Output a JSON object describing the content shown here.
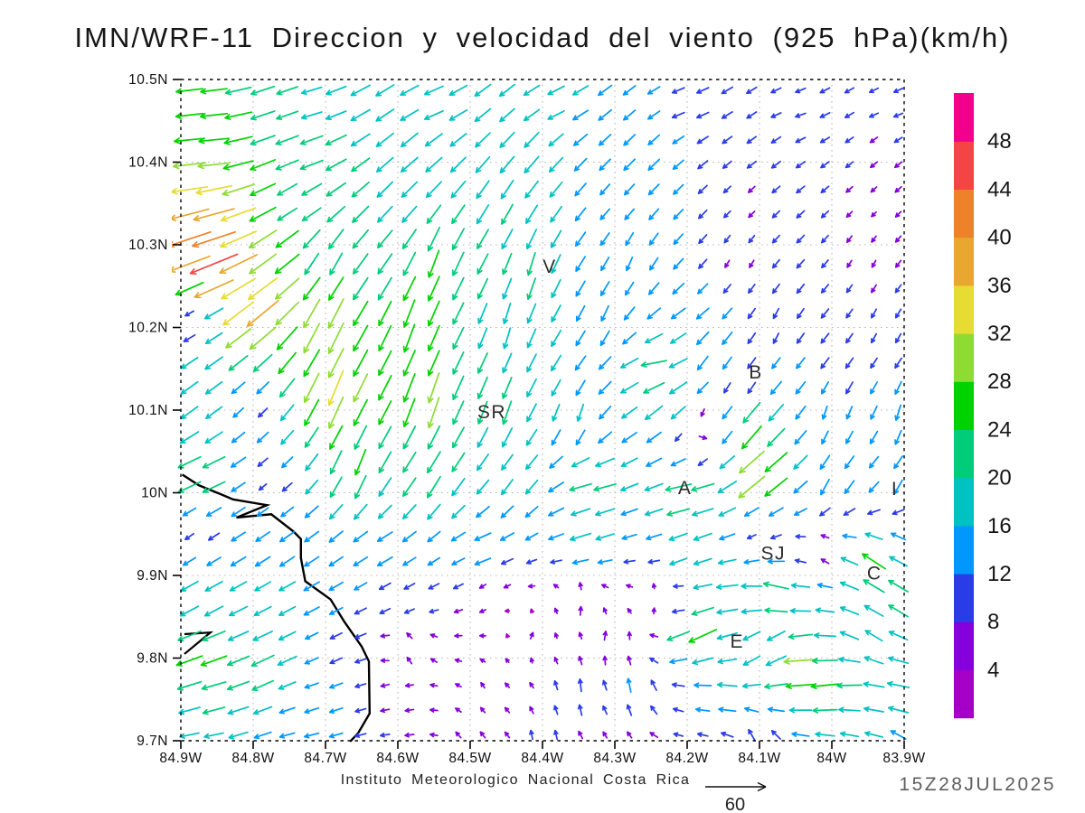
{
  "title": {
    "text": "IMN/WRF-11 Direccion y velocidad del viento (925 hPa)(km/h)"
  },
  "footer": {
    "institute": "Instituto Meteorologico Nacional Costa Rica",
    "timestamp": "15Z28JUL2025"
  },
  "axes": {
    "x_ticks": [
      {
        "label": "84.9W",
        "lonW": 84.9
      },
      {
        "label": "84.8W",
        "lonW": 84.8
      },
      {
        "label": "84.7W",
        "lonW": 84.7
      },
      {
        "label": "84.6W",
        "lonW": 84.6
      },
      {
        "label": "84.5W",
        "lonW": 84.5
      },
      {
        "label": "84.4W",
        "lonW": 84.4
      },
      {
        "label": "84.3W",
        "lonW": 84.3
      },
      {
        "label": "84.2W",
        "lonW": 84.2
      },
      {
        "label": "84.1W",
        "lonW": 84.1
      },
      {
        "label": "84W",
        "lonW": 84.0
      },
      {
        "label": "83.9W",
        "lonW": 83.9
      }
    ],
    "y_ticks": [
      {
        "label": "10.5N",
        "lat": 10.5
      },
      {
        "label": "10.4N",
        "lat": 10.4
      },
      {
        "label": "10.3N",
        "lat": 10.3
      },
      {
        "label": "10.2N",
        "lat": 10.2
      },
      {
        "label": "10.1N",
        "lat": 10.1
      },
      {
        "label": "10N",
        "lat": 10.0
      },
      {
        "label": "9.9N",
        "lat": 9.9
      },
      {
        "label": "9.8N",
        "lat": 9.8
      },
      {
        "label": "9.7N",
        "lat": 9.7
      }
    ]
  },
  "colorbar": {
    "levels": [
      4,
      8,
      12,
      16,
      20,
      24,
      28,
      32,
      36,
      40,
      44,
      48
    ],
    "colors": [
      "#a400c8",
      "#8400dc",
      "#2a3ce8",
      "#0098ff",
      "#00c2c2",
      "#00cc7a",
      "#00d200",
      "#8edc32",
      "#e6dc32",
      "#e8a830",
      "#ee8228",
      "#f44444",
      "#f0008c"
    ]
  },
  "stations": [
    {
      "label": "V",
      "lonW": 84.39,
      "lat": 10.274
    },
    {
      "label": "B",
      "lonW": 84.105,
      "lat": 10.146
    },
    {
      "label": "SR",
      "lonW": 84.47,
      "lat": 10.098
    },
    {
      "label": "A",
      "lonW": 84.203,
      "lat": 10.006
    },
    {
      "label": "SJ",
      "lonW": 84.081,
      "lat": 9.927
    },
    {
      "label": "C",
      "lonW": 83.941,
      "lat": 9.903
    },
    {
      "label": "E",
      "lonW": 84.131,
      "lat": 9.82
    },
    {
      "label": "I",
      "lonW": 83.913,
      "lat": 10.005
    }
  ],
  "coastline": [
    [
      84.898,
      10.022
    ],
    [
      84.875,
      10.009
    ],
    [
      84.844,
      9.998
    ],
    [
      84.828,
      9.992
    ],
    [
      84.781,
      9.985
    ],
    [
      84.823,
      9.97
    ],
    [
      84.775,
      9.974
    ],
    [
      84.744,
      9.953
    ],
    [
      84.734,
      9.944
    ],
    [
      84.734,
      9.921
    ],
    [
      84.728,
      9.893
    ],
    [
      84.693,
      9.871
    ],
    [
      84.674,
      9.844
    ],
    [
      84.65,
      9.814
    ],
    [
      84.64,
      9.796
    ],
    [
      84.639,
      9.733
    ],
    [
      84.655,
      9.709
    ],
    [
      84.666,
      9.699
    ]
  ],
  "peninsula_spit": [
    [
      84.895,
      9.829
    ],
    [
      84.859,
      9.831
    ],
    [
      84.895,
      9.805
    ]
  ],
  "ref_arrow": {
    "label": "60",
    "value_kmh": 60
  },
  "chart_data": {
    "type": "vector_field",
    "units": "km/h",
    "level": "925 hPa",
    "lon_range_degW": [
      84.9,
      83.9
    ],
    "lat_range_degN": [
      9.7,
      10.5
    ],
    "grid": {
      "lon_start": 84.888,
      "lon_end": 83.908,
      "cols": 30,
      "lat_start": 9.707,
      "lat_end": 10.487,
      "rows": 27
    },
    "anchors_lonW_lat_u_v": [
      [
        84.87,
        10.47,
        -24,
        -2
      ],
      [
        84.72,
        10.47,
        -18,
        -5
      ],
      [
        84.55,
        10.47,
        -17,
        -7
      ],
      [
        84.38,
        10.47,
        -15,
        -7
      ],
      [
        84.2,
        10.47,
        -11,
        -4
      ],
      [
        84.05,
        10.46,
        -9,
        -3
      ],
      [
        83.92,
        10.46,
        -8,
        -3
      ],
      [
        84.87,
        10.41,
        -28,
        -1
      ],
      [
        84.73,
        10.41,
        -21,
        -7
      ],
      [
        84.58,
        10.4,
        -15,
        -13
      ],
      [
        84.42,
        10.4,
        -13,
        -15
      ],
      [
        84.27,
        10.4,
        -10,
        -10
      ],
      [
        84.1,
        10.41,
        -8,
        -6
      ],
      [
        83.93,
        10.41,
        -6,
        -5
      ],
      [
        84.88,
        10.37,
        -33,
        -4
      ],
      [
        84.86,
        10.33,
        -38,
        -10
      ],
      [
        84.74,
        10.35,
        -16,
        -10
      ],
      [
        84.6,
        10.34,
        -13,
        -14
      ],
      [
        84.45,
        10.34,
        -10,
        -18
      ],
      [
        84.3,
        10.35,
        -8,
        -9
      ],
      [
        84.12,
        10.35,
        -5,
        -5
      ],
      [
        83.94,
        10.34,
        -4,
        -4
      ],
      [
        84.87,
        10.3,
        -42,
        -14
      ],
      [
        84.85,
        10.27,
        -46,
        -19
      ],
      [
        84.78,
        10.28,
        -24,
        -18
      ],
      [
        84.7,
        10.28,
        -10,
        -20
      ],
      [
        84.55,
        10.28,
        -9,
        -25
      ],
      [
        84.42,
        10.27,
        -6,
        -21
      ],
      [
        84.28,
        10.28,
        -5,
        -12
      ],
      [
        84.13,
        10.28,
        -3,
        -6
      ],
      [
        83.95,
        10.28,
        -3,
        -6
      ],
      [
        84.88,
        10.21,
        -5,
        -3
      ],
      [
        84.8,
        10.22,
        -30,
        -25
      ],
      [
        84.7,
        10.2,
        -13,
        -30
      ],
      [
        84.58,
        10.2,
        -9,
        -26
      ],
      [
        84.45,
        10.2,
        -5,
        -19
      ],
      [
        84.32,
        10.21,
        -6,
        -14
      ],
      [
        84.2,
        10.19,
        -14,
        -9
      ],
      [
        84.08,
        10.2,
        -4,
        -9
      ],
      [
        83.93,
        10.2,
        -4,
        -8
      ],
      [
        84.24,
        10.15,
        -25,
        -3
      ],
      [
        84.23,
        10.11,
        -17,
        -15
      ],
      [
        84.13,
        10.13,
        -4,
        -8
      ],
      [
        84.17,
        10.17,
        -8,
        -14
      ],
      [
        84.88,
        10.11,
        -15,
        -11
      ],
      [
        84.8,
        10.1,
        -7,
        -7
      ],
      [
        84.69,
        10.12,
        -13,
        -33
      ],
      [
        84.56,
        10.11,
        -9,
        -30
      ],
      [
        84.46,
        10.1,
        -7,
        -22
      ],
      [
        84.36,
        10.09,
        -4,
        -16
      ],
      [
        84.18,
        10.07,
        9,
        -1
      ],
      [
        84.11,
        10.08,
        -19,
        -23
      ],
      [
        84.0,
        10.09,
        -3,
        -12
      ],
      [
        83.91,
        10.09,
        -4,
        -14
      ],
      [
        84.87,
        10.02,
        -23,
        -10
      ],
      [
        84.78,
        10.01,
        -6,
        -5
      ],
      [
        84.66,
        10.03,
        -9,
        -24
      ],
      [
        84.55,
        10.02,
        -12,
        -20
      ],
      [
        84.44,
        10.01,
        -10,
        -14
      ],
      [
        84.33,
        10.01,
        -22,
        -5
      ],
      [
        84.2,
        10.0,
        -26,
        -5
      ],
      [
        84.1,
        10.02,
        -28,
        -24
      ],
      [
        84.0,
        10.01,
        -7,
        -15
      ],
      [
        83.91,
        10.01,
        -7,
        -13
      ],
      [
        84.88,
        9.95,
        -7,
        -5
      ],
      [
        84.75,
        9.94,
        -13,
        -9
      ],
      [
        84.62,
        9.93,
        -14,
        -8
      ],
      [
        84.48,
        9.93,
        -16,
        -6
      ],
      [
        84.34,
        9.94,
        -20,
        -6
      ],
      [
        84.2,
        9.93,
        -17,
        -7
      ],
      [
        84.1,
        9.95,
        -6,
        -3
      ],
      [
        84.02,
        9.93,
        -4,
        5
      ],
      [
        83.94,
        9.91,
        -22,
        15
      ],
      [
        83.89,
        9.94,
        -12,
        7
      ],
      [
        84.87,
        9.87,
        -16,
        -9
      ],
      [
        84.74,
        9.87,
        -15,
        -8
      ],
      [
        84.6,
        9.87,
        -9,
        -5
      ],
      [
        84.47,
        9.88,
        -4,
        -3
      ],
      [
        84.35,
        9.87,
        2,
        9
      ],
      [
        84.24,
        9.87,
        4,
        7
      ],
      [
        84.15,
        9.88,
        -20,
        -2
      ],
      [
        84.08,
        9.88,
        -24,
        6
      ],
      [
        83.92,
        9.87,
        -18,
        12
      ],
      [
        84.19,
        9.83,
        -28,
        -14
      ],
      [
        84.09,
        9.81,
        -12,
        -14
      ],
      [
        83.95,
        9.83,
        -15,
        10
      ],
      [
        84.3,
        9.82,
        3,
        9
      ],
      [
        84.42,
        9.83,
        3,
        6
      ],
      [
        84.58,
        9.81,
        -3,
        8
      ],
      [
        84.7,
        9.82,
        -10,
        -5
      ],
      [
        84.87,
        9.8,
        -25,
        -9
      ],
      [
        84.78,
        9.79,
        -21,
        -10
      ],
      [
        84.86,
        9.76,
        -22,
        -6
      ],
      [
        84.72,
        9.76,
        -12,
        -4
      ],
      [
        84.6,
        9.76,
        -7,
        -2
      ],
      [
        84.48,
        9.76,
        -3,
        5
      ],
      [
        84.35,
        9.76,
        -1,
        12
      ],
      [
        84.27,
        9.76,
        -2,
        14
      ],
      [
        84.15,
        9.76,
        -18,
        2
      ],
      [
        84.05,
        9.79,
        -33,
        -2
      ],
      [
        84.0,
        9.76,
        -26,
        -3
      ],
      [
        83.9,
        9.76,
        -20,
        4
      ],
      [
        84.87,
        9.71,
        -17,
        -3
      ],
      [
        84.73,
        9.71,
        -13,
        -3
      ],
      [
        84.6,
        9.71,
        -8,
        -1
      ],
      [
        84.5,
        9.7,
        -4,
        6
      ],
      [
        84.4,
        9.7,
        -1,
        9
      ],
      [
        84.3,
        9.7,
        -3,
        5
      ],
      [
        84.2,
        9.71,
        -8,
        2
      ],
      [
        84.1,
        9.7,
        -4,
        11
      ],
      [
        83.98,
        9.71,
        -16,
        3
      ],
      [
        83.9,
        9.7,
        -13,
        8
      ]
    ]
  }
}
